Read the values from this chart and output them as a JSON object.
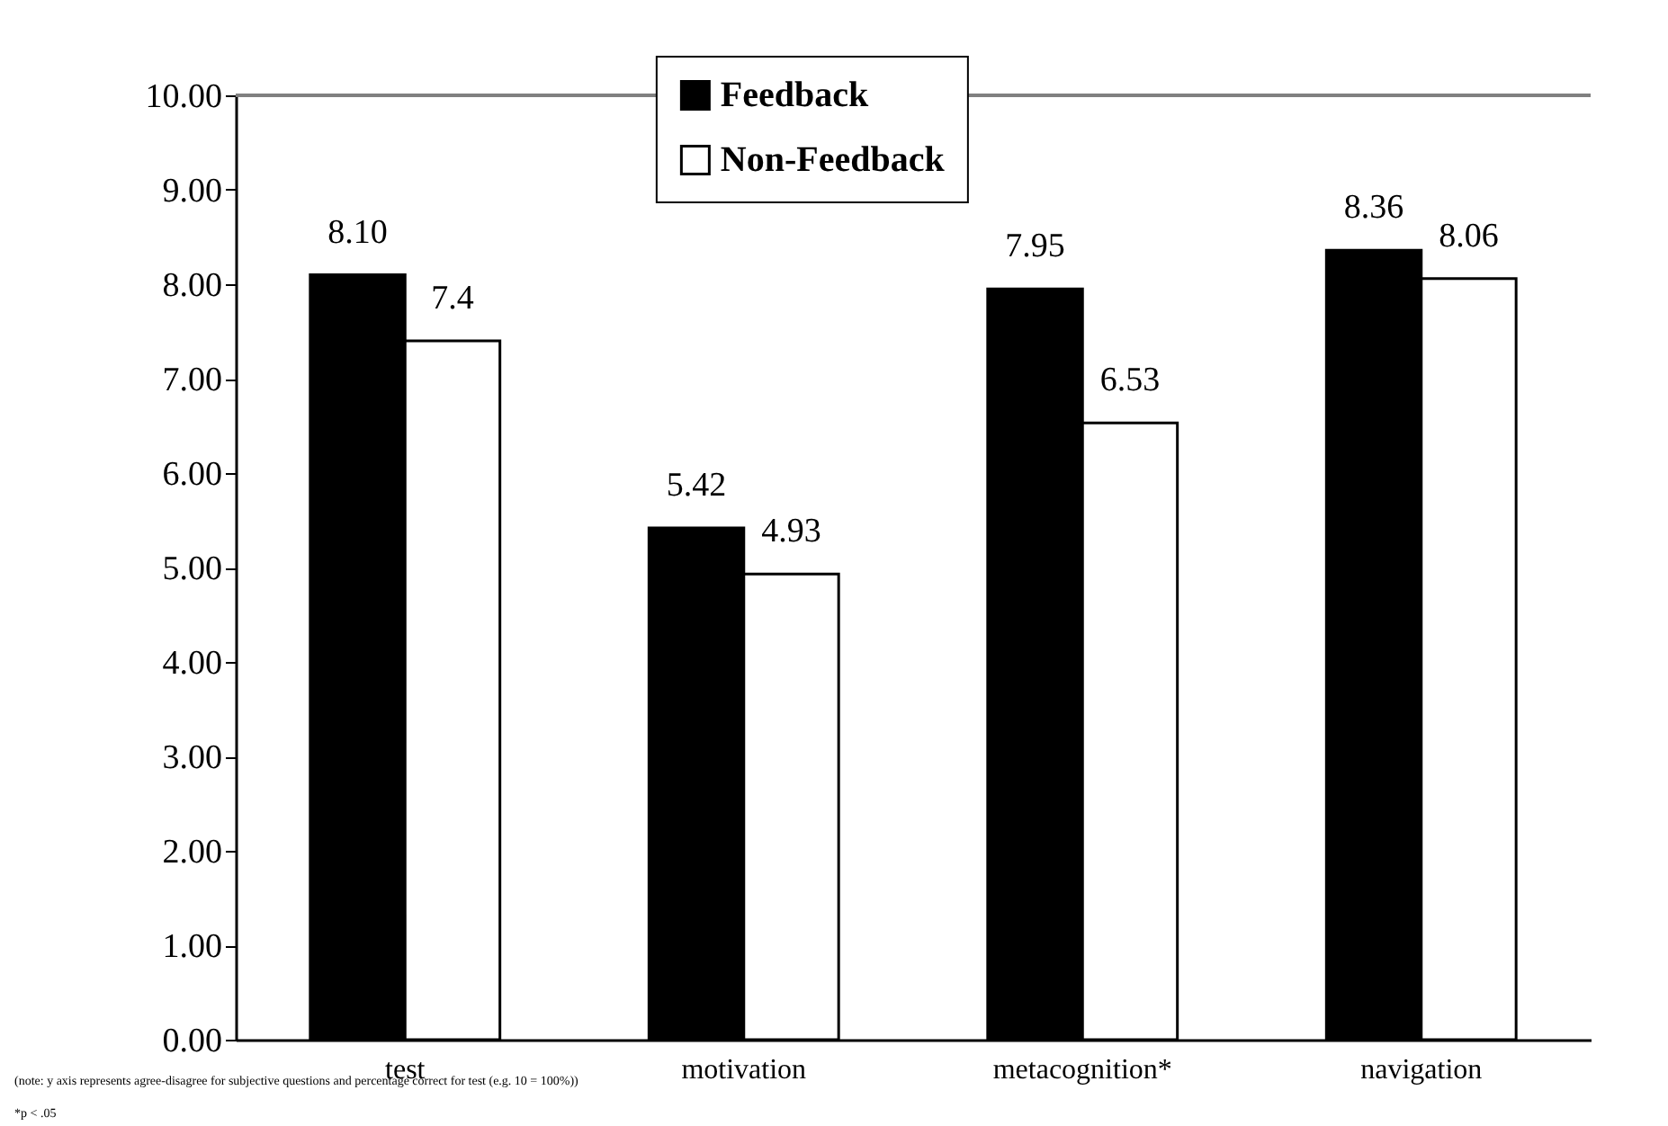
{
  "chart_data": {
    "type": "bar",
    "categories": [
      "test",
      "motivation",
      "metacognition*",
      "navigation"
    ],
    "series": [
      {
        "name": "Feedback",
        "color": "#000000",
        "values": [
          8.1,
          5.42,
          7.95,
          8.36
        ],
        "value_labels": [
          "8.10",
          "5.42",
          "7.95",
          "8.36"
        ]
      },
      {
        "name": "Non-Feedback",
        "color": "#ffffff",
        "values": [
          7.4,
          4.93,
          6.53,
          8.06
        ],
        "value_labels": [
          "7.4",
          "4.93",
          "6.53",
          "8.06"
        ]
      }
    ],
    "ylim": [
      0,
      10
    ],
    "yticks": [
      {
        "value": 0,
        "label": "0.00"
      },
      {
        "value": 1,
        "label": "1.00"
      },
      {
        "value": 2,
        "label": "2.00"
      },
      {
        "value": 3,
        "label": "3.00"
      },
      {
        "value": 4,
        "label": "4.00"
      },
      {
        "value": 5,
        "label": "5.00"
      },
      {
        "value": 6,
        "label": "6.00"
      },
      {
        "value": 7,
        "label": "7.00"
      },
      {
        "value": 8,
        "label": "8.00"
      },
      {
        "value": 9,
        "label": "9.00"
      },
      {
        "value": 10,
        "label": "10.00"
      }
    ],
    "ref_lines": [
      {
        "axis": "y",
        "value": 10,
        "color": "#808080"
      }
    ],
    "legend": "top",
    "annotations": [
      "(note: y axis represents agree-disagree for subjective questions and percentage correct for test (e.g. 10 = 100%))",
      "*p < .05"
    ]
  }
}
